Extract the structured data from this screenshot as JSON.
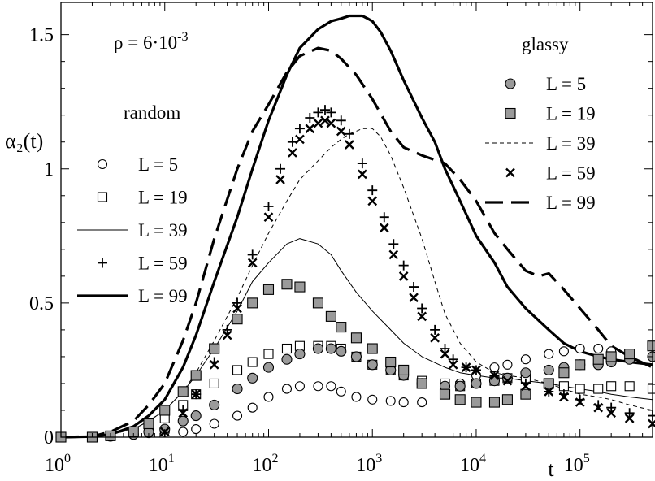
{
  "chart_data": {
    "type": "line",
    "title": "",
    "xlabel": "t",
    "ylabel": "α₂(t)",
    "xscale": "log",
    "xlim": [
      1,
      500000
    ],
    "ylim": [
      0,
      1.62
    ],
    "grid": false,
    "x_ticks": [
      {
        "value": 1,
        "base": "10",
        "exp": "0"
      },
      {
        "value": 10,
        "base": "10",
        "exp": "1"
      },
      {
        "value": 100,
        "base": "10",
        "exp": "2"
      },
      {
        "value": 1000,
        "base": "10",
        "exp": "3"
      },
      {
        "value": 10000,
        "base": "10",
        "exp": "4"
      },
      {
        "value": 100000,
        "base": "10",
        "exp": "5"
      }
    ],
    "y_ticks": [
      {
        "value": 0,
        "label": "0"
      },
      {
        "value": 0.5,
        "label": "0.5"
      },
      {
        "value": 1,
        "label": "1"
      },
      {
        "value": 1.5,
        "label": "1.5"
      }
    ],
    "annotation": {
      "prefix": "ρ = 6·10",
      "exponent": "-3"
    },
    "legend_groups": [
      {
        "title": "random",
        "placement": "left"
      },
      {
        "title": "glassy",
        "placement": "top-right"
      }
    ],
    "series": [
      {
        "name": "L = 5",
        "group": "random",
        "style": "open-circle",
        "x": [
          1,
          2,
          3,
          5,
          7,
          10,
          15,
          20,
          30,
          50,
          70,
          100,
          150,
          200,
          300,
          400,
          500,
          700,
          1000,
          1500,
          2000,
          3000,
          5000,
          7000,
          10000,
          15000,
          20000,
          30000,
          50000,
          70000,
          100000,
          150000,
          200000,
          300000,
          500000
        ],
        "y": [
          0,
          0,
          0.003,
          0.01,
          0.015,
          0.02,
          0.02,
          0.03,
          0.05,
          0.08,
          0.11,
          0.15,
          0.18,
          0.19,
          0.19,
          0.19,
          0.17,
          0.15,
          0.14,
          0.135,
          0.13,
          0.13,
          0.16,
          0.2,
          0.23,
          0.26,
          0.27,
          0.29,
          0.31,
          0.32,
          0.33,
          0.33,
          0.32,
          0.31,
          0.3
        ]
      },
      {
        "name": "L = 19",
        "group": "random",
        "style": "open-square",
        "x": [
          1,
          2,
          3,
          5,
          7,
          10,
          15,
          20,
          30,
          50,
          70,
          100,
          150,
          200,
          300,
          400,
          500,
          700,
          1000,
          1500,
          2000,
          3000,
          5000,
          7000,
          10000,
          15000,
          20000,
          30000,
          50000,
          70000,
          100000,
          150000,
          200000,
          300000,
          500000
        ],
        "y": [
          0,
          0,
          0.005,
          0.02,
          0.04,
          0.07,
          0.12,
          0.16,
          0.2,
          0.25,
          0.28,
          0.31,
          0.33,
          0.34,
          0.34,
          0.34,
          0.33,
          0.3,
          0.27,
          0.25,
          0.23,
          0.21,
          0.2,
          0.19,
          0.2,
          0.21,
          0.22,
          0.22,
          0.2,
          0.19,
          0.18,
          0.18,
          0.19,
          0.19,
          0.18
        ]
      },
      {
        "name": "L = 39",
        "group": "random",
        "style": "thin-solid",
        "x": [
          1,
          2,
          3,
          5,
          7,
          10,
          15,
          20,
          30,
          50,
          70,
          100,
          150,
          200,
          300,
          400,
          500,
          700,
          1000,
          1500,
          2000,
          3000,
          5000,
          7000,
          10000,
          15000,
          20000,
          30000,
          50000,
          70000,
          100000,
          150000,
          200000,
          300000,
          500000
        ],
        "y": [
          0,
          0.002,
          0.01,
          0.03,
          0.06,
          0.1,
          0.17,
          0.23,
          0.33,
          0.47,
          0.58,
          0.65,
          0.72,
          0.74,
          0.72,
          0.68,
          0.62,
          0.54,
          0.47,
          0.4,
          0.35,
          0.3,
          0.26,
          0.24,
          0.23,
          0.22,
          0.22,
          0.21,
          0.2,
          0.19,
          0.18,
          0.17,
          0.16,
          0.15,
          0.14
        ]
      },
      {
        "name": "L = 59",
        "group": "random",
        "style": "plus",
        "x": [
          10,
          15,
          20,
          30,
          40,
          50,
          70,
          100,
          130,
          170,
          200,
          250,
          300,
          350,
          400,
          500,
          600,
          800,
          1000,
          1300,
          1600,
          2000,
          2500,
          3000,
          4000,
          5000,
          6000,
          8000,
          10000,
          15000,
          20000,
          30000,
          50000,
          70000,
          100000,
          150000,
          200000,
          300000,
          500000
        ],
        "y": [
          0.02,
          0.1,
          0.16,
          0.28,
          0.4,
          0.5,
          0.68,
          0.86,
          1.0,
          1.1,
          1.15,
          1.19,
          1.21,
          1.22,
          1.21,
          1.18,
          1.13,
          1.02,
          0.92,
          0.82,
          0.72,
          0.64,
          0.56,
          0.48,
          0.4,
          0.33,
          0.29,
          0.26,
          0.25,
          0.23,
          0.22,
          0.2,
          0.17,
          0.16,
          0.14,
          0.12,
          0.11,
          0.09,
          0.08
        ]
      },
      {
        "name": "L = 99",
        "group": "random",
        "style": "thick-solid",
        "x": [
          1,
          2,
          3,
          5,
          7,
          10,
          15,
          20,
          30,
          50,
          70,
          100,
          150,
          200,
          300,
          400,
          500,
          600,
          700,
          800,
          900,
          1000,
          1200,
          1500,
          2000,
          3000,
          4000,
          5000,
          7000,
          10000,
          15000,
          20000,
          30000,
          50000,
          70000,
          100000,
          150000,
          200000,
          300000,
          500000
        ],
        "y": [
          0,
          0.002,
          0.01,
          0.04,
          0.08,
          0.14,
          0.26,
          0.38,
          0.58,
          0.82,
          1.0,
          1.18,
          1.35,
          1.45,
          1.52,
          1.55,
          1.56,
          1.57,
          1.57,
          1.57,
          1.56,
          1.55,
          1.51,
          1.44,
          1.33,
          1.19,
          1.1,
          1.0,
          0.88,
          0.75,
          0.65,
          0.56,
          0.48,
          0.4,
          0.35,
          0.32,
          0.3,
          0.29,
          0.28,
          0.27
        ]
      },
      {
        "name": "L = 5",
        "group": "glassy",
        "style": "filled-circle",
        "x": [
          1,
          2,
          3,
          5,
          7,
          10,
          15,
          20,
          30,
          50,
          70,
          100,
          150,
          200,
          300,
          400,
          500,
          700,
          1000,
          1500,
          2000,
          3000,
          5000,
          7000,
          10000,
          15000,
          20000,
          30000,
          50000,
          70000,
          100000,
          150000,
          200000,
          300000,
          500000
        ],
        "y": [
          0,
          0,
          0.003,
          0.01,
          0.02,
          0.03,
          0.06,
          0.08,
          0.12,
          0.18,
          0.22,
          0.26,
          0.29,
          0.31,
          0.33,
          0.33,
          0.32,
          0.3,
          0.27,
          0.25,
          0.23,
          0.2,
          0.19,
          0.19,
          0.2,
          0.21,
          0.22,
          0.24,
          0.25,
          0.26,
          0.27,
          0.27,
          0.28,
          0.29,
          0.3
        ]
      },
      {
        "name": "L = 19",
        "group": "glassy",
        "style": "filled-square",
        "x": [
          1,
          2,
          3,
          5,
          7,
          10,
          15,
          20,
          30,
          50,
          70,
          100,
          150,
          200,
          300,
          400,
          500,
          700,
          1000,
          1500,
          2000,
          3000,
          5000,
          7000,
          10000,
          15000,
          20000,
          30000,
          50000,
          70000,
          100000,
          150000,
          200000,
          300000,
          500000
        ],
        "y": [
          0,
          0,
          0.005,
          0.02,
          0.05,
          0.1,
          0.17,
          0.23,
          0.33,
          0.44,
          0.5,
          0.55,
          0.57,
          0.56,
          0.5,
          0.45,
          0.41,
          0.37,
          0.33,
          0.28,
          0.25,
          0.2,
          0.16,
          0.14,
          0.13,
          0.13,
          0.14,
          0.16,
          0.2,
          0.24,
          0.27,
          0.29,
          0.3,
          0.31,
          0.34
        ]
      },
      {
        "name": "L = 39",
        "group": "glassy",
        "style": "thin-dashed",
        "x": [
          1,
          2,
          3,
          5,
          7,
          10,
          15,
          20,
          30,
          50,
          70,
          100,
          150,
          200,
          300,
          400,
          500,
          600,
          700,
          800,
          1000,
          1200,
          1500,
          2000,
          3000,
          4000,
          5000,
          7000,
          10000,
          15000,
          20000,
          30000,
          50000,
          70000,
          100000,
          150000,
          200000,
          300000,
          500000
        ],
        "y": [
          0,
          0.002,
          0.01,
          0.03,
          0.06,
          0.1,
          0.17,
          0.24,
          0.36,
          0.52,
          0.64,
          0.76,
          0.88,
          0.96,
          1.03,
          1.08,
          1.11,
          1.13,
          1.14,
          1.15,
          1.15,
          1.12,
          1.05,
          0.93,
          0.74,
          0.58,
          0.46,
          0.35,
          0.28,
          0.24,
          0.23,
          0.22,
          0.2,
          0.18,
          0.16,
          0.15,
          0.14,
          0.12,
          0.1
        ]
      },
      {
        "name": "L = 59",
        "group": "glassy",
        "style": "cross",
        "x": [
          10,
          15,
          20,
          30,
          40,
          50,
          70,
          100,
          130,
          170,
          200,
          250,
          300,
          350,
          400,
          500,
          600,
          800,
          1000,
          1300,
          1600,
          2000,
          2500,
          3000,
          4000,
          5000,
          6000,
          8000,
          10000,
          15000,
          20000,
          30000,
          50000,
          70000,
          100000,
          150000,
          200000,
          300000,
          500000
        ],
        "y": [
          0.02,
          0.09,
          0.16,
          0.27,
          0.38,
          0.48,
          0.65,
          0.82,
          0.96,
          1.06,
          1.11,
          1.15,
          1.17,
          1.18,
          1.17,
          1.14,
          1.09,
          0.98,
          0.88,
          0.78,
          0.68,
          0.6,
          0.52,
          0.45,
          0.37,
          0.31,
          0.27,
          0.26,
          0.25,
          0.23,
          0.21,
          0.19,
          0.17,
          0.15,
          0.13,
          0.11,
          0.09,
          0.07,
          0.05
        ]
      },
      {
        "name": "L = 99",
        "group": "glassy",
        "style": "thick-dashed",
        "x": [
          1,
          2,
          3,
          5,
          7,
          10,
          15,
          20,
          30,
          50,
          70,
          100,
          150,
          200,
          300,
          400,
          500,
          700,
          1000,
          1500,
          2000,
          3000,
          5000,
          7000,
          10000,
          15000,
          20000,
          30000,
          40000,
          50000,
          70000,
          100000,
          150000,
          200000,
          300000,
          500000
        ],
        "y": [
          0,
          0.003,
          0.02,
          0.06,
          0.12,
          0.2,
          0.36,
          0.5,
          0.74,
          1.0,
          1.14,
          1.24,
          1.36,
          1.42,
          1.45,
          1.44,
          1.41,
          1.35,
          1.26,
          1.14,
          1.08,
          1.05,
          1.02,
          0.96,
          0.88,
          0.76,
          0.7,
          0.62,
          0.6,
          0.61,
          0.55,
          0.48,
          0.4,
          0.34,
          0.3,
          0.26
        ]
      }
    ]
  }
}
